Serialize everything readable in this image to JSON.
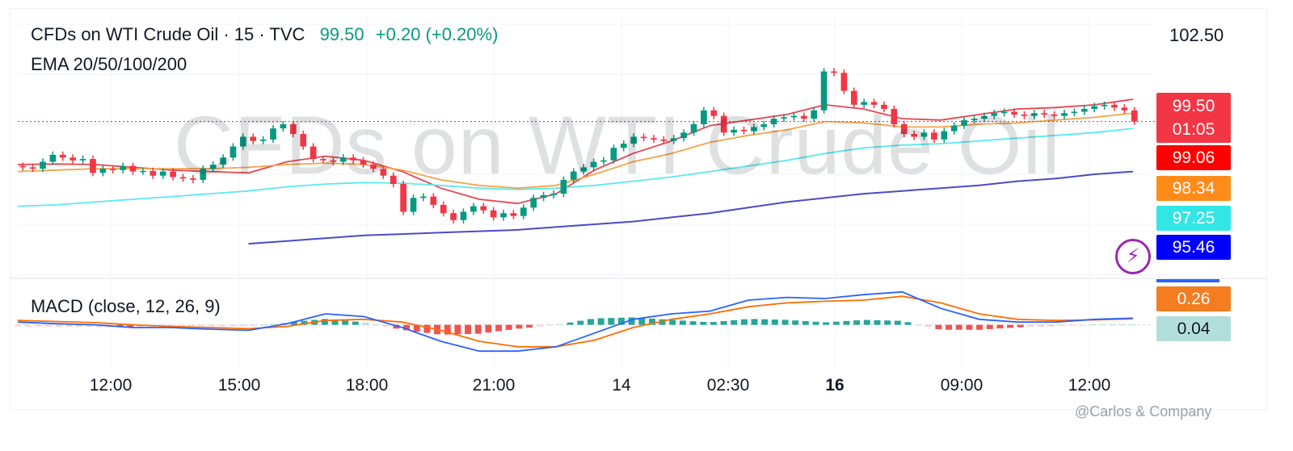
{
  "header": {
    "symbol": "CFDs on WTI Crude Oil · 15 · TVC",
    "price": "99.50",
    "change": "+0.20 (+0.20%)",
    "indicator": "EMA 20/50/100/200"
  },
  "watermark": "CFDs on WTI Crude Oil",
  "macd_label": "MACD (close, 12, 26, 9)",
  "top_price": "102.50",
  "price_tags": [
    {
      "label": "99.50",
      "sub": "01:05",
      "color": "#f23645"
    },
    {
      "label": "99.06",
      "color": "#ff0000"
    },
    {
      "label": "98.34",
      "color": "#ff8c1a"
    },
    {
      "label": "97.25",
      "color": "#33e6e6"
    },
    {
      "label": "95.46",
      "color": "#0000ff"
    }
  ],
  "macd_tags": [
    {
      "label": "0.26",
      "color": "#f57c1f"
    },
    {
      "label": "0.04",
      "color": "#b2dfdb"
    }
  ],
  "x_ticks": [
    "12:00",
    "15:00",
    "18:00",
    "21:00",
    "14",
    "02:30",
    "16",
    "09:00",
    "12:00"
  ],
  "credit": "@Carlos & Company",
  "colors": {
    "up": "#089981",
    "down": "#f23645",
    "ema20": "#e8454f",
    "ema50": "#f5a34a",
    "ema100": "#5ce8f0",
    "ema200": "#4b4bc8",
    "macd": "#2962ff",
    "signal": "#ff6d00"
  },
  "chart_data": {
    "type": "candlestick",
    "title": "CFDs on WTI Crude Oil · 15 · TVC",
    "ylim": [
      94.0,
      103.0
    ],
    "last_price": 99.5,
    "x_ticks": [
      "12:00",
      "15:00",
      "18:00",
      "21:00",
      "14",
      "02:30",
      "16",
      "09:00",
      "12:00"
    ],
    "candles": [
      [
        97.9,
        97.85
      ],
      [
        97.85,
        97.8
      ],
      [
        97.8,
        98.05
      ],
      [
        98.05,
        98.3
      ],
      [
        98.3,
        98.2
      ],
      [
        98.2,
        98.1
      ],
      [
        98.1,
        98.15
      ],
      [
        98.15,
        97.65
      ],
      [
        97.65,
        97.8
      ],
      [
        97.8,
        97.75
      ],
      [
        97.75,
        97.9
      ],
      [
        97.9,
        97.7
      ],
      [
        97.7,
        97.72
      ],
      [
        97.72,
        97.55
      ],
      [
        97.55,
        97.7
      ],
      [
        97.7,
        97.5
      ],
      [
        97.5,
        97.45
      ],
      [
        97.45,
        97.4
      ],
      [
        97.4,
        97.8
      ],
      [
        97.8,
        97.95
      ],
      [
        97.95,
        98.2
      ],
      [
        98.2,
        98.6
      ],
      [
        98.6,
        98.95
      ],
      [
        98.95,
        98.8
      ],
      [
        98.8,
        98.85
      ],
      [
        98.85,
        99.25
      ],
      [
        99.25,
        99.4
      ],
      [
        99.4,
        99.05
      ],
      [
        99.05,
        98.6
      ],
      [
        98.6,
        98.15
      ],
      [
        98.15,
        98.1
      ],
      [
        98.1,
        98.05
      ],
      [
        98.05,
        98.2
      ],
      [
        98.2,
        98.1
      ],
      [
        98.1,
        97.95
      ],
      [
        97.95,
        97.8
      ],
      [
        97.8,
        97.55
      ],
      [
        97.55,
        97.25
      ],
      [
        97.25,
        96.25
      ],
      [
        96.25,
        96.75
      ],
      [
        96.75,
        96.8
      ],
      [
        96.8,
        96.5
      ],
      [
        96.5,
        96.2
      ],
      [
        96.2,
        95.95
      ],
      [
        95.95,
        96.25
      ],
      [
        96.25,
        96.45
      ],
      [
        96.45,
        96.3
      ],
      [
        96.3,
        96.05
      ],
      [
        96.05,
        96.2
      ],
      [
        96.2,
        96.1
      ],
      [
        96.1,
        96.4
      ],
      [
        96.4,
        96.75
      ],
      [
        96.75,
        96.85
      ],
      [
        96.85,
        96.9
      ],
      [
        96.9,
        97.4
      ],
      [
        97.4,
        97.7
      ],
      [
        97.7,
        97.85
      ],
      [
        97.85,
        98.05
      ],
      [
        98.05,
        98.1
      ],
      [
        98.1,
        98.55
      ],
      [
        98.55,
        98.7
      ],
      [
        98.7,
        98.95
      ],
      [
        98.95,
        98.9
      ],
      [
        98.9,
        98.85
      ],
      [
        98.85,
        98.8
      ],
      [
        98.8,
        98.9
      ],
      [
        98.9,
        99.1
      ],
      [
        99.1,
        99.4
      ],
      [
        99.4,
        99.9
      ],
      [
        99.9,
        99.7
      ],
      [
        99.7,
        99.1
      ],
      [
        99.1,
        99.2
      ],
      [
        99.2,
        99.15
      ],
      [
        99.15,
        99.3
      ],
      [
        99.3,
        99.4
      ],
      [
        99.4,
        99.6
      ],
      [
        99.6,
        99.65
      ],
      [
        99.65,
        99.7
      ],
      [
        99.7,
        99.6
      ],
      [
        99.6,
        99.9
      ],
      [
        99.9,
        101.3
      ],
      [
        101.3,
        101.25
      ],
      [
        101.25,
        100.6
      ],
      [
        100.6,
        100.1
      ],
      [
        100.1,
        100.2
      ],
      [
        100.2,
        100.1
      ],
      [
        100.1,
        99.95
      ],
      [
        99.95,
        99.4
      ],
      [
        99.4,
        99.05
      ],
      [
        99.05,
        98.95
      ],
      [
        98.95,
        99.1
      ],
      [
        99.1,
        98.85
      ],
      [
        98.85,
        99.15
      ],
      [
        99.15,
        99.35
      ],
      [
        99.35,
        99.55
      ],
      [
        99.55,
        99.6
      ],
      [
        99.6,
        99.7
      ],
      [
        99.7,
        99.8
      ],
      [
        99.8,
        99.85
      ],
      [
        99.85,
        99.75
      ],
      [
        99.75,
        99.7
      ],
      [
        99.7,
        99.8
      ],
      [
        99.8,
        99.75
      ],
      [
        99.75,
        99.7
      ],
      [
        99.7,
        99.8
      ],
      [
        99.8,
        99.85
      ],
      [
        99.85,
        99.95
      ],
      [
        99.95,
        100.05
      ],
      [
        100.05,
        100.1
      ],
      [
        100.1,
        100.0
      ],
      [
        100.0,
        99.9
      ],
      [
        99.9,
        99.5
      ]
    ],
    "series": [
      {
        "name": "EMA 20",
        "values": [
          97.95,
          97.97,
          97.95,
          97.85,
          97.75,
          97.7,
          97.65,
          98.05,
          98.25,
          98.1,
          97.7,
          97.1,
          96.7,
          96.55,
          96.9,
          97.75,
          98.35,
          98.8,
          99.35,
          99.55,
          99.75,
          100.1,
          99.95,
          99.6,
          99.55,
          99.75,
          99.95,
          100.0,
          100.1,
          100.3
        ]
      },
      {
        "name": "EMA 50",
        "values": [
          97.7,
          97.75,
          97.8,
          97.8,
          97.8,
          97.8,
          97.85,
          97.95,
          98.0,
          97.95,
          97.75,
          97.4,
          97.2,
          97.1,
          97.2,
          97.6,
          98.05,
          98.35,
          98.75,
          99.0,
          99.2,
          99.5,
          99.45,
          99.3,
          99.3,
          99.4,
          99.45,
          99.55,
          99.65,
          99.8
        ]
      },
      {
        "name": "EMA 100",
        "values": [
          96.45,
          96.5,
          96.6,
          96.7,
          96.8,
          96.9,
          97.0,
          97.15,
          97.25,
          97.3,
          97.28,
          97.2,
          97.1,
          97.05,
          97.1,
          97.2,
          97.35,
          97.5,
          97.7,
          97.9,
          98.1,
          98.35,
          98.55,
          98.65,
          98.7,
          98.8,
          98.9,
          99.0,
          99.1,
          99.25
        ]
      },
      {
        "name": "EMA 200",
        "values": [
          null,
          null,
          null,
          null,
          null,
          null,
          95.1,
          95.2,
          95.3,
          95.4,
          95.45,
          95.5,
          95.55,
          95.6,
          95.7,
          95.8,
          95.9,
          96.05,
          96.2,
          96.4,
          96.6,
          96.75,
          96.9,
          97.0,
          97.1,
          97.2,
          97.35,
          97.45,
          97.6,
          97.7
        ]
      }
    ],
    "macd": {
      "range": [
        -0.55,
        0.7
      ],
      "macd_line": [
        0.05,
        0.02,
        0.0,
        -0.05,
        -0.05,
        -0.08,
        -0.1,
        0.02,
        0.2,
        0.15,
        -0.05,
        -0.3,
        -0.48,
        -0.48,
        -0.4,
        -0.15,
        0.1,
        0.2,
        0.25,
        0.45,
        0.5,
        0.48,
        0.55,
        0.6,
        0.3,
        0.1,
        0.05,
        0.05,
        0.1,
        0.12
      ],
      "signal_line": [
        0.08,
        0.06,
        0.04,
        0.0,
        -0.03,
        -0.05,
        -0.07,
        -0.03,
        0.08,
        0.1,
        0.05,
        -0.1,
        -0.3,
        -0.4,
        -0.4,
        -0.28,
        -0.05,
        0.1,
        0.2,
        0.33,
        0.4,
        0.43,
        0.45,
        0.52,
        0.4,
        0.2,
        0.1,
        0.08,
        0.09,
        0.11
      ]
    }
  }
}
